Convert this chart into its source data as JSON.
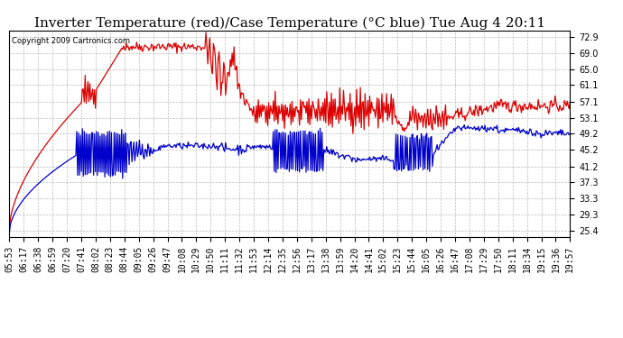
{
  "title": "Inverter Temperature (red)/Case Temperature (°C blue) Tue Aug 4 20:11",
  "copyright": "Copyright 2009 Cartronics.com",
  "yticks": [
    25.4,
    29.3,
    33.3,
    37.3,
    41.2,
    45.2,
    49.2,
    53.1,
    57.1,
    61.1,
    65.0,
    69.0,
    72.9
  ],
  "ylim": [
    24.0,
    74.5
  ],
  "xtick_labels": [
    "05:53",
    "06:17",
    "06:38",
    "06:59",
    "07:20",
    "07:41",
    "08:02",
    "08:23",
    "08:44",
    "09:05",
    "09:26",
    "09:47",
    "10:08",
    "10:29",
    "10:50",
    "11:11",
    "11:32",
    "11:53",
    "12:14",
    "12:35",
    "12:56",
    "13:17",
    "13:38",
    "13:59",
    "14:20",
    "14:41",
    "15:02",
    "15:23",
    "15:44",
    "16:05",
    "16:26",
    "16:47",
    "17:08",
    "17:29",
    "17:50",
    "18:11",
    "18:34",
    "19:15",
    "19:36",
    "19:57"
  ],
  "bg_color": "#ffffff",
  "plot_bg_color": "#ffffff",
  "grid_color": "#aaaaaa",
  "red_color": "#dd0000",
  "blue_color": "#0000cc",
  "title_fontsize": 11,
  "tick_fontsize": 7
}
